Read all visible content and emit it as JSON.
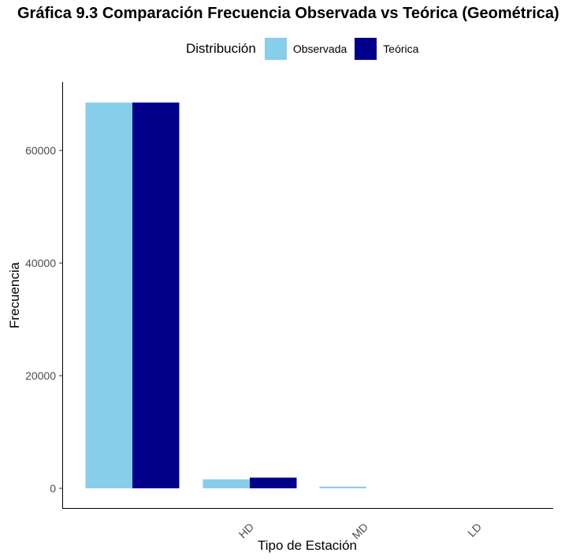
{
  "chart_data": {
    "type": "bar",
    "title": "Gráfica 9.3 Comparación Frecuencia Observada vs Teórica (Geométrica)",
    "xlabel": "Tipo de Estación",
    "ylabel": "Frecuencia",
    "categories": [
      "HD",
      "MD",
      "LD"
    ],
    "series": [
      {
        "name": "Observada",
        "color": "#87CEEB",
        "values": [
          68500,
          1600,
          300
        ]
      },
      {
        "name": "Teórica",
        "color": "#00008B",
        "values": [
          68500,
          1900,
          0
        ]
      }
    ],
    "ylim": [
      0,
      72000
    ],
    "yticks": [
      0,
      20000,
      40000,
      60000
    ],
    "grid": false,
    "legend": {
      "title": "Distribución",
      "position": "top"
    }
  }
}
